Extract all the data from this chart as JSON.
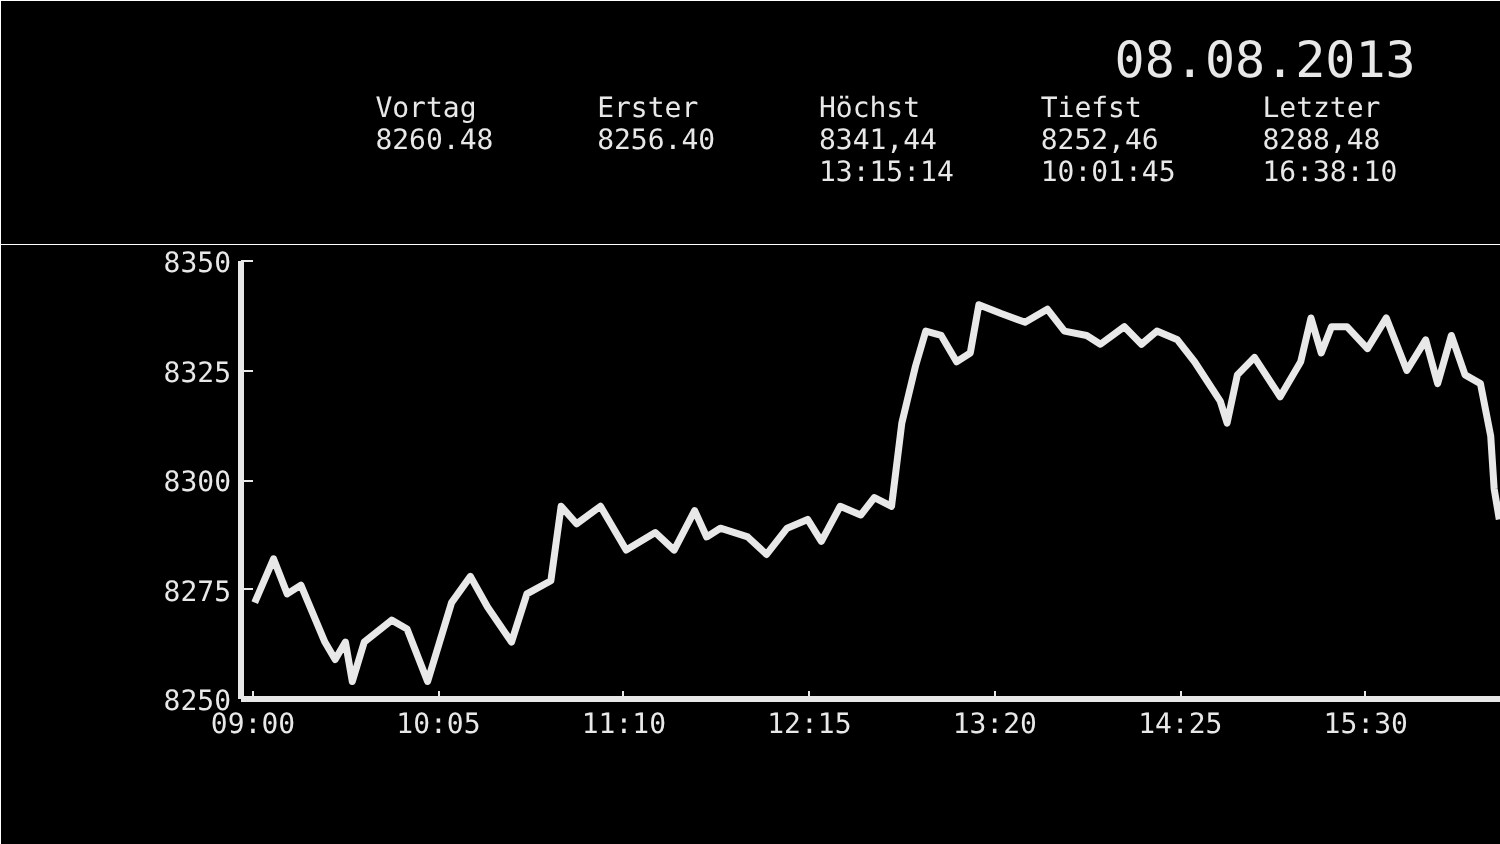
{
  "chart_data": {
    "type": "line",
    "title": "08.08.2013",
    "annotations": [
      "Vortag\n8260.48",
      "Erster\n8256.40",
      "Höchst\n8341,44\n13:15:14",
      "Tiefst\n8252,46\n10:01:45",
      "Letzter\n8288,48\n16:38:10"
    ],
    "x": [
      9.01,
      9.12,
      9.2,
      9.28,
      9.42,
      9.48,
      9.54,
      9.58,
      9.65,
      9.81,
      9.9,
      10.02,
      10.16,
      10.27,
      10.37,
      10.51,
      10.6,
      10.74,
      10.8,
      10.89,
      11.03,
      11.18,
      11.35,
      11.46,
      11.58,
      11.65,
      11.73,
      11.89,
      12.0,
      12.12,
      12.24,
      12.32,
      12.43,
      12.55,
      12.63,
      12.73,
      12.79,
      12.87,
      12.93,
      13.02,
      13.11,
      13.19,
      13.24,
      13.37,
      13.51,
      13.64,
      13.74,
      13.87,
      13.95,
      14.09,
      14.19,
      14.28,
      14.4,
      14.5,
      14.65,
      14.69,
      14.75,
      14.85,
      15.0,
      15.12,
      15.18,
      15.24,
      15.3,
      15.39,
      15.51,
      15.62,
      15.74,
      15.85,
      15.92,
      16.0,
      16.08,
      16.17,
      16.23,
      16.25,
      16.28
    ],
    "series": [
      {
        "color": "#e8e8e8",
        "values": [
          8272,
          8282,
          8274,
          8276,
          8263,
          8259,
          8263,
          8254,
          8263,
          8268,
          8266,
          8254,
          8272,
          8278,
          8271,
          8263,
          8274,
          8277,
          8294,
          8290,
          8294,
          8284,
          8288,
          8284,
          8293,
          8287,
          8289,
          8287,
          8283,
          8289,
          8291,
          8286,
          8294,
          8292,
          8296,
          8294,
          8313,
          8326,
          8334,
          8333,
          8327,
          8329,
          8340,
          8338,
          8336,
          8339,
          8334,
          8333,
          8331,
          8335,
          8331,
          8334,
          8332,
          8327,
          8318,
          8313,
          8324,
          8328,
          8319,
          8327,
          8337,
          8329,
          8335,
          8335,
          8330,
          8337,
          8325,
          8332,
          8322,
          8333,
          8324,
          8322,
          8310,
          8298,
          8291
        ]
      }
    ],
    "xlim": [
      8.93,
      16.29
    ],
    "ylim": [
      8250,
      8350
    ],
    "xticks": [
      {
        "value": 9,
        "label": "09:00"
      },
      {
        "value": 10.0833,
        "label": "10:05"
      },
      {
        "value": 11.1667,
        "label": "11:10"
      },
      {
        "value": 12.25,
        "label": "12:15"
      },
      {
        "value": 13.3333,
        "label": "13:20"
      },
      {
        "value": 14.4167,
        "label": "14:25"
      },
      {
        "value": 15.5,
        "label": "15:30"
      }
    ],
    "yticks": [
      8250,
      8275,
      8300,
      8325,
      8350
    ],
    "grid": false,
    "marker": "none",
    "line_style": "solid"
  }
}
